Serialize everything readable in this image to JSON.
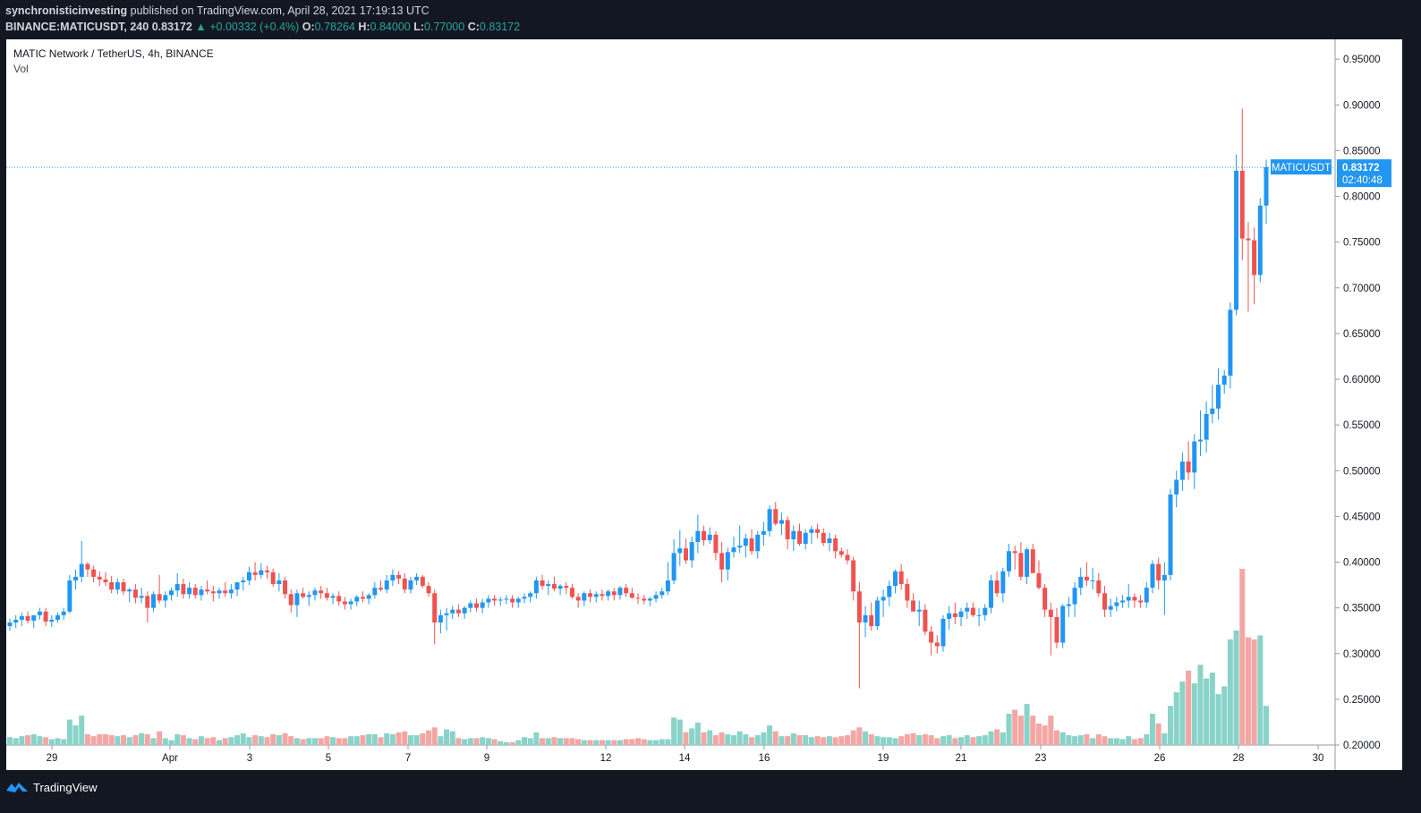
{
  "header": {
    "author": "synchronisticinvesting",
    "published_text": " published on TradingView.com, April 28, 2021 17:19:13 UTC",
    "symbol_line": "BINANCE:MATICUSDT, 240",
    "last": "0.83172",
    "arrow": "▲",
    "change": "+0.00332 (+0.4%)",
    "o_label": "O:",
    "o": "0.78264",
    "h_label": "H:",
    "h": "0.84000",
    "l_label": "L:",
    "l": "0.77000",
    "c_label": "C:",
    "c": "0.83172"
  },
  "legend": {
    "title": "MATIC Network / TetherUS, 4h, BINANCE",
    "volume": "Vol"
  },
  "footer": {
    "brand": "TradingView"
  },
  "colors": {
    "up": "#2196f3",
    "down": "#ef5350",
    "vol_up": "#89d3c8",
    "vol_down": "#f4a6a4",
    "price_line": "#2196f3",
    "background": "#131722"
  },
  "chart_data": {
    "type": "candlestick",
    "symbol": "MATICUSDT",
    "interval": "4h",
    "y_ticks": [
      "0.95000",
      "0.90000",
      "0.85000",
      "0.80000",
      "0.75000",
      "0.70000",
      "0.65000",
      "0.60000",
      "0.55000",
      "0.50000",
      "0.45000",
      "0.40000",
      "0.35000",
      "0.30000",
      "0.25000",
      "0.20000"
    ],
    "x_ticks": [
      "29",
      "Apr",
      "3",
      "5",
      "7",
      "9",
      "12",
      "14",
      "16",
      "19",
      "21",
      "23",
      "26",
      "28",
      "30"
    ],
    "ylim": [
      0.2,
      0.96
    ],
    "last_price_label": "MATICUSDT",
    "last_price": "0.83172",
    "countdown": "02:40:48",
    "ohlcv": [
      [
        0.33,
        0.338,
        0.325,
        0.334,
        8
      ],
      [
        0.334,
        0.342,
        0.328,
        0.337,
        7
      ],
      [
        0.337,
        0.345,
        0.33,
        0.341,
        9
      ],
      [
        0.341,
        0.346,
        0.333,
        0.336,
        10
      ],
      [
        0.336,
        0.34,
        0.328,
        0.342,
        11
      ],
      [
        0.342,
        0.35,
        0.337,
        0.346,
        9
      ],
      [
        0.346,
        0.35,
        0.33,
        0.335,
        8
      ],
      [
        0.335,
        0.342,
        0.329,
        0.337,
        6
      ],
      [
        0.337,
        0.345,
        0.334,
        0.342,
        7
      ],
      [
        0.342,
        0.35,
        0.337,
        0.346,
        6
      ],
      [
        0.346,
        0.386,
        0.344,
        0.38,
        26
      ],
      [
        0.38,
        0.392,
        0.37,
        0.384,
        20
      ],
      [
        0.384,
        0.423,
        0.378,
        0.398,
        30
      ],
      [
        0.398,
        0.4,
        0.384,
        0.392,
        11
      ],
      [
        0.392,
        0.396,
        0.378,
        0.384,
        9
      ],
      [
        0.384,
        0.39,
        0.374,
        0.381,
        11
      ],
      [
        0.381,
        0.389,
        0.374,
        0.378,
        11
      ],
      [
        0.378,
        0.385,
        0.366,
        0.37,
        10
      ],
      [
        0.37,
        0.382,
        0.365,
        0.378,
        9
      ],
      [
        0.378,
        0.382,
        0.364,
        0.368,
        10
      ],
      [
        0.368,
        0.372,
        0.356,
        0.37,
        8
      ],
      [
        0.37,
        0.376,
        0.355,
        0.361,
        10
      ],
      [
        0.361,
        0.372,
        0.355,
        0.363,
        12
      ],
      [
        0.363,
        0.368,
        0.334,
        0.35,
        11
      ],
      [
        0.35,
        0.368,
        0.346,
        0.365,
        7
      ],
      [
        0.365,
        0.386,
        0.355,
        0.358,
        14
      ],
      [
        0.358,
        0.368,
        0.35,
        0.364,
        7
      ],
      [
        0.364,
        0.372,
        0.358,
        0.369,
        5
      ],
      [
        0.369,
        0.388,
        0.362,
        0.376,
        11
      ],
      [
        0.376,
        0.382,
        0.36,
        0.365,
        10
      ],
      [
        0.365,
        0.378,
        0.36,
        0.372,
        7
      ],
      [
        0.372,
        0.376,
        0.36,
        0.364,
        6
      ],
      [
        0.364,
        0.374,
        0.358,
        0.37,
        9
      ],
      [
        0.37,
        0.38,
        0.365,
        0.368,
        7
      ],
      [
        0.368,
        0.374,
        0.357,
        0.366,
        8
      ],
      [
        0.366,
        0.372,
        0.36,
        0.369,
        5
      ],
      [
        0.369,
        0.378,
        0.362,
        0.366,
        7
      ],
      [
        0.366,
        0.376,
        0.36,
        0.37,
        8
      ],
      [
        0.37,
        0.378,
        0.363,
        0.378,
        10
      ],
      [
        0.378,
        0.384,
        0.369,
        0.38,
        12
      ],
      [
        0.38,
        0.395,
        0.375,
        0.389,
        8
      ],
      [
        0.389,
        0.4,
        0.38,
        0.386,
        10
      ],
      [
        0.386,
        0.399,
        0.382,
        0.391,
        9
      ],
      [
        0.391,
        0.396,
        0.382,
        0.389,
        8
      ],
      [
        0.389,
        0.393,
        0.373,
        0.376,
        11
      ],
      [
        0.376,
        0.388,
        0.368,
        0.38,
        10
      ],
      [
        0.38,
        0.384,
        0.36,
        0.365,
        12
      ],
      [
        0.365,
        0.37,
        0.345,
        0.353,
        9
      ],
      [
        0.353,
        0.37,
        0.34,
        0.366,
        7
      ],
      [
        0.366,
        0.372,
        0.36,
        0.362,
        6
      ],
      [
        0.362,
        0.368,
        0.352,
        0.364,
        7
      ],
      [
        0.364,
        0.372,
        0.358,
        0.369,
        7
      ],
      [
        0.369,
        0.374,
        0.36,
        0.366,
        7
      ],
      [
        0.366,
        0.372,
        0.358,
        0.361,
        9
      ],
      [
        0.361,
        0.366,
        0.354,
        0.363,
        8
      ],
      [
        0.363,
        0.368,
        0.352,
        0.357,
        7
      ],
      [
        0.357,
        0.362,
        0.348,
        0.354,
        7
      ],
      [
        0.354,
        0.36,
        0.348,
        0.357,
        9
      ],
      [
        0.357,
        0.364,
        0.352,
        0.362,
        9
      ],
      [
        0.362,
        0.368,
        0.356,
        0.36,
        10
      ],
      [
        0.36,
        0.366,
        0.354,
        0.364,
        11
      ],
      [
        0.364,
        0.378,
        0.36,
        0.372,
        11
      ],
      [
        0.372,
        0.38,
        0.368,
        0.37,
        8
      ],
      [
        0.37,
        0.386,
        0.366,
        0.38,
        12
      ],
      [
        0.38,
        0.392,
        0.374,
        0.386,
        11
      ],
      [
        0.386,
        0.39,
        0.376,
        0.382,
        13
      ],
      [
        0.382,
        0.388,
        0.366,
        0.37,
        14
      ],
      [
        0.37,
        0.384,
        0.366,
        0.38,
        10
      ],
      [
        0.38,
        0.388,
        0.375,
        0.384,
        10
      ],
      [
        0.384,
        0.386,
        0.372,
        0.374,
        12
      ],
      [
        0.374,
        0.378,
        0.362,
        0.366,
        15
      ],
      [
        0.366,
        0.37,
        0.31,
        0.334,
        18
      ],
      [
        0.334,
        0.348,
        0.322,
        0.342,
        9
      ],
      [
        0.342,
        0.35,
        0.325,
        0.344,
        16
      ],
      [
        0.344,
        0.352,
        0.338,
        0.348,
        14
      ],
      [
        0.348,
        0.354,
        0.34,
        0.344,
        7
      ],
      [
        0.344,
        0.352,
        0.338,
        0.35,
        6
      ],
      [
        0.35,
        0.358,
        0.345,
        0.355,
        7
      ],
      [
        0.355,
        0.36,
        0.346,
        0.35,
        7
      ],
      [
        0.35,
        0.36,
        0.344,
        0.356,
        8
      ],
      [
        0.356,
        0.364,
        0.35,
        0.36,
        7
      ],
      [
        0.36,
        0.364,
        0.352,
        0.358,
        6
      ],
      [
        0.358,
        0.362,
        0.352,
        0.359,
        4
      ],
      [
        0.359,
        0.364,
        0.354,
        0.36,
        3
      ],
      [
        0.36,
        0.364,
        0.35,
        0.356,
        3
      ],
      [
        0.356,
        0.362,
        0.35,
        0.36,
        5
      ],
      [
        0.36,
        0.366,
        0.355,
        0.362,
        8
      ],
      [
        0.362,
        0.368,
        0.356,
        0.366,
        7
      ],
      [
        0.366,
        0.384,
        0.36,
        0.38,
        13
      ],
      [
        0.38,
        0.386,
        0.37,
        0.374,
        7
      ],
      [
        0.374,
        0.38,
        0.364,
        0.376,
        7
      ],
      [
        0.376,
        0.384,
        0.368,
        0.371,
        8
      ],
      [
        0.371,
        0.376,
        0.364,
        0.374,
        7
      ],
      [
        0.374,
        0.378,
        0.365,
        0.372,
        7
      ],
      [
        0.372,
        0.376,
        0.36,
        0.362,
        7
      ],
      [
        0.362,
        0.366,
        0.35,
        0.358,
        6
      ],
      [
        0.358,
        0.368,
        0.352,
        0.366,
        5
      ],
      [
        0.366,
        0.37,
        0.356,
        0.362,
        5
      ],
      [
        0.362,
        0.368,
        0.356,
        0.365,
        5
      ],
      [
        0.365,
        0.37,
        0.358,
        0.363,
        5
      ],
      [
        0.363,
        0.37,
        0.358,
        0.368,
        5
      ],
      [
        0.368,
        0.372,
        0.358,
        0.364,
        5
      ],
      [
        0.364,
        0.374,
        0.359,
        0.372,
        5
      ],
      [
        0.372,
        0.376,
        0.362,
        0.366,
        6
      ],
      [
        0.366,
        0.372,
        0.36,
        0.361,
        6
      ],
      [
        0.361,
        0.366,
        0.354,
        0.36,
        7
      ],
      [
        0.36,
        0.364,
        0.354,
        0.358,
        6
      ],
      [
        0.358,
        0.362,
        0.352,
        0.36,
        5
      ],
      [
        0.36,
        0.368,
        0.356,
        0.364,
        5
      ],
      [
        0.364,
        0.372,
        0.36,
        0.368,
        6
      ],
      [
        0.368,
        0.4,
        0.364,
        0.38,
        6
      ],
      [
        0.38,
        0.425,
        0.376,
        0.41,
        28
      ],
      [
        0.41,
        0.435,
        0.396,
        0.415,
        26
      ],
      [
        0.415,
        0.426,
        0.398,
        0.402,
        13
      ],
      [
        0.402,
        0.428,
        0.394,
        0.422,
        17
      ],
      [
        0.422,
        0.452,
        0.41,
        0.434,
        23
      ],
      [
        0.434,
        0.44,
        0.418,
        0.424,
        13
      ],
      [
        0.424,
        0.438,
        0.42,
        0.43,
        15
      ],
      [
        0.43,
        0.434,
        0.402,
        0.41,
        10
      ],
      [
        0.41,
        0.422,
        0.378,
        0.392,
        13
      ],
      [
        0.392,
        0.416,
        0.38,
        0.411,
        11
      ],
      [
        0.411,
        0.428,
        0.405,
        0.416,
        10
      ],
      [
        0.416,
        0.44,
        0.41,
        0.418,
        14
      ],
      [
        0.418,
        0.431,
        0.405,
        0.426,
        11
      ],
      [
        0.426,
        0.436,
        0.408,
        0.412,
        8
      ],
      [
        0.412,
        0.434,
        0.404,
        0.43,
        10
      ],
      [
        0.43,
        0.444,
        0.418,
        0.434,
        13
      ],
      [
        0.434,
        0.462,
        0.428,
        0.458,
        20
      ],
      [
        0.458,
        0.466,
        0.44,
        0.442,
        14
      ],
      [
        0.442,
        0.454,
        0.43,
        0.446,
        9
      ],
      [
        0.446,
        0.45,
        0.414,
        0.425,
        9
      ],
      [
        0.425,
        0.44,
        0.412,
        0.434,
        12
      ],
      [
        0.434,
        0.442,
        0.418,
        0.42,
        10
      ],
      [
        0.42,
        0.436,
        0.414,
        0.432,
        10
      ],
      [
        0.432,
        0.44,
        0.42,
        0.436,
        8
      ],
      [
        0.436,
        0.442,
        0.426,
        0.432,
        9
      ],
      [
        0.432,
        0.437,
        0.418,
        0.421,
        8
      ],
      [
        0.421,
        0.432,
        0.412,
        0.426,
        9
      ],
      [
        0.426,
        0.43,
        0.404,
        0.412,
        8
      ],
      [
        0.412,
        0.416,
        0.405,
        0.408,
        9
      ],
      [
        0.408,
        0.414,
        0.398,
        0.402,
        10
      ],
      [
        0.402,
        0.406,
        0.358,
        0.368,
        15
      ],
      [
        0.368,
        0.378,
        0.262,
        0.334,
        18
      ],
      [
        0.334,
        0.352,
        0.318,
        0.342,
        14
      ],
      [
        0.342,
        0.356,
        0.325,
        0.33,
        11
      ],
      [
        0.33,
        0.362,
        0.326,
        0.358,
        9
      ],
      [
        0.358,
        0.37,
        0.34,
        0.362,
        8
      ],
      [
        0.362,
        0.38,
        0.352,
        0.374,
        8
      ],
      [
        0.374,
        0.392,
        0.366,
        0.39,
        7
      ],
      [
        0.39,
        0.398,
        0.37,
        0.376,
        9
      ],
      [
        0.376,
        0.382,
        0.35,
        0.358,
        11
      ],
      [
        0.358,
        0.366,
        0.346,
        0.346,
        12
      ],
      [
        0.346,
        0.358,
        0.33,
        0.348,
        10
      ],
      [
        0.348,
        0.354,
        0.32,
        0.324,
        11
      ],
      [
        0.324,
        0.33,
        0.298,
        0.312,
        10
      ],
      [
        0.312,
        0.32,
        0.3,
        0.308,
        7
      ],
      [
        0.308,
        0.342,
        0.302,
        0.338,
        9
      ],
      [
        0.338,
        0.352,
        0.326,
        0.344,
        10
      ],
      [
        0.344,
        0.356,
        0.332,
        0.34,
        7
      ],
      [
        0.34,
        0.35,
        0.33,
        0.346,
        8
      ],
      [
        0.346,
        0.356,
        0.338,
        0.35,
        10
      ],
      [
        0.35,
        0.356,
        0.34,
        0.342,
        8
      ],
      [
        0.342,
        0.35,
        0.33,
        0.342,
        9
      ],
      [
        0.342,
        0.354,
        0.336,
        0.35,
        10
      ],
      [
        0.35,
        0.386,
        0.344,
        0.38,
        14
      ],
      [
        0.38,
        0.39,
        0.362,
        0.366,
        16
      ],
      [
        0.366,
        0.394,
        0.356,
        0.39,
        13
      ],
      [
        0.39,
        0.42,
        0.384,
        0.412,
        32
      ],
      [
        0.412,
        0.418,
        0.392,
        0.41,
        36
      ],
      [
        0.41,
        0.422,
        0.38,
        0.384,
        30
      ],
      [
        0.384,
        0.416,
        0.376,
        0.414,
        42
      ],
      [
        0.414,
        0.42,
        0.394,
        0.388,
        30
      ],
      [
        0.388,
        0.402,
        0.37,
        0.372,
        22
      ],
      [
        0.372,
        0.376,
        0.34,
        0.348,
        20
      ],
      [
        0.348,
        0.356,
        0.298,
        0.34,
        30
      ],
      [
        0.34,
        0.35,
        0.306,
        0.312,
        15
      ],
      [
        0.312,
        0.354,
        0.306,
        0.352,
        13
      ],
      [
        0.352,
        0.362,
        0.34,
        0.354,
        10
      ],
      [
        0.354,
        0.378,
        0.34,
        0.372,
        9
      ],
      [
        0.372,
        0.394,
        0.364,
        0.384,
        10
      ],
      [
        0.384,
        0.4,
        0.374,
        0.38,
        11
      ],
      [
        0.38,
        0.394,
        0.37,
        0.38,
        7
      ],
      [
        0.38,
        0.388,
        0.362,
        0.366,
        11
      ],
      [
        0.366,
        0.374,
        0.34,
        0.348,
        9
      ],
      [
        0.348,
        0.36,
        0.34,
        0.352,
        7
      ],
      [
        0.352,
        0.362,
        0.346,
        0.356,
        7
      ],
      [
        0.356,
        0.364,
        0.35,
        0.358,
        6
      ],
      [
        0.358,
        0.376,
        0.35,
        0.362,
        9
      ],
      [
        0.362,
        0.366,
        0.35,
        0.358,
        6
      ],
      [
        0.358,
        0.364,
        0.35,
        0.356,
        7
      ],
      [
        0.356,
        0.378,
        0.35,
        0.372,
        11
      ],
      [
        0.372,
        0.402,
        0.366,
        0.398,
        32
      ],
      [
        0.398,
        0.405,
        0.37,
        0.38,
        22
      ],
      [
        0.38,
        0.4,
        0.342,
        0.386,
        12
      ],
      [
        0.386,
        0.48,
        0.38,
        0.474,
        40
      ],
      [
        0.474,
        0.5,
        0.46,
        0.49,
        54
      ],
      [
        0.49,
        0.52,
        0.478,
        0.51,
        65
      ],
      [
        0.51,
        0.532,
        0.49,
        0.498,
        76
      ],
      [
        0.498,
        0.54,
        0.48,
        0.532,
        63
      ],
      [
        0.532,
        0.566,
        0.516,
        0.534,
        82
      ],
      [
        0.534,
        0.576,
        0.52,
        0.562,
        68
      ],
      [
        0.562,
        0.594,
        0.552,
        0.568,
        74
      ],
      [
        0.568,
        0.612,
        0.556,
        0.594,
        52
      ],
      [
        0.594,
        0.61,
        0.584,
        0.604,
        60
      ],
      [
        0.604,
        0.684,
        0.59,
        0.676,
        108
      ],
      [
        0.676,
        0.846,
        0.67,
        0.828,
        117
      ],
      [
        0.828,
        0.896,
        0.73,
        0.754,
        180
      ],
      [
        0.754,
        0.772,
        0.674,
        0.752,
        110
      ],
      [
        0.752,
        0.766,
        0.682,
        0.714,
        108
      ],
      [
        0.714,
        0.798,
        0.706,
        0.79,
        112
      ],
      [
        0.79,
        0.84,
        0.77,
        0.832,
        40
      ]
    ]
  }
}
